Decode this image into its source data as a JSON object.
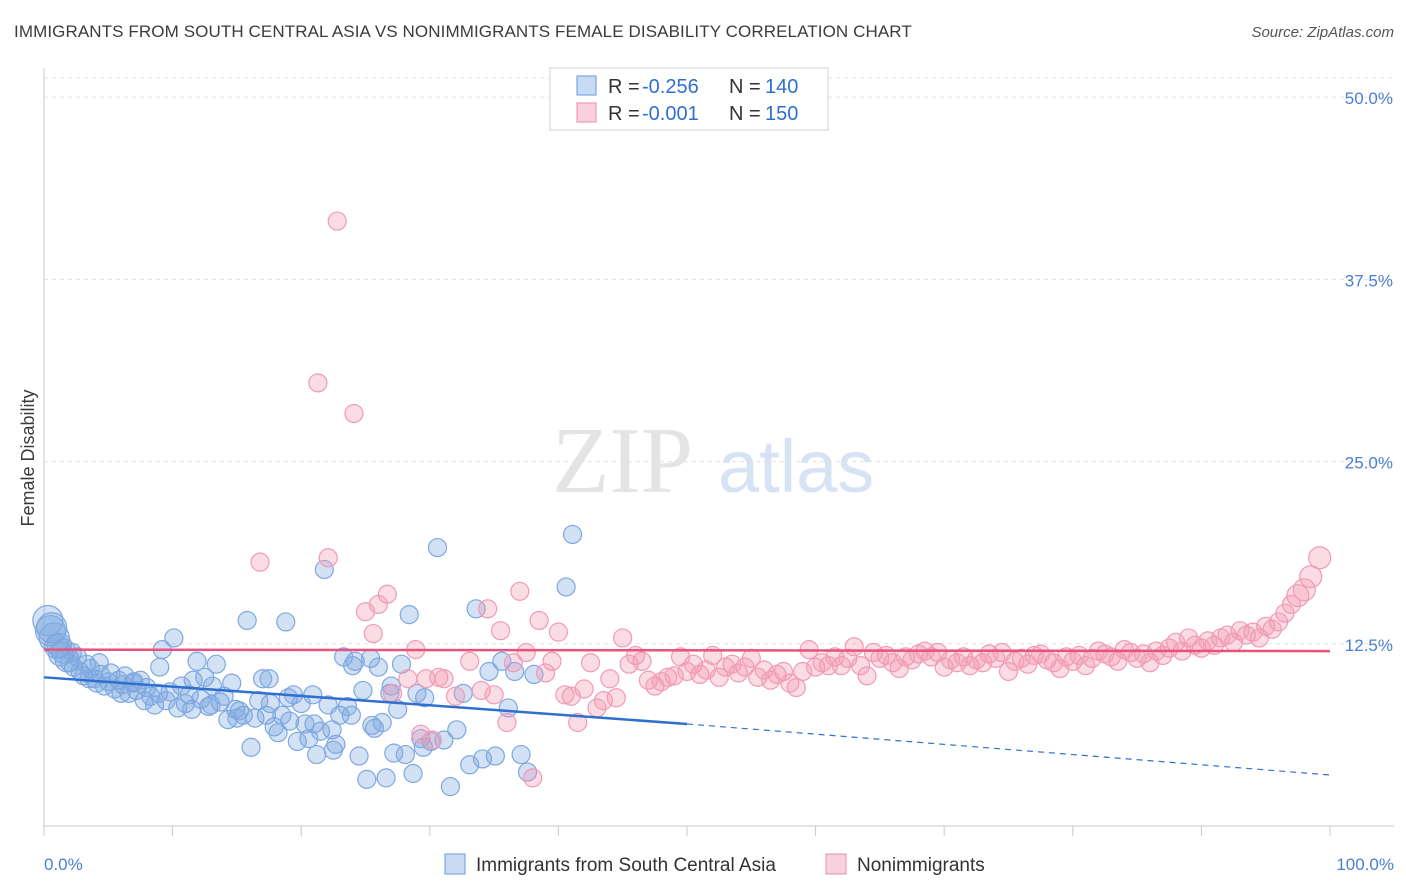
{
  "header": {
    "title": "IMMIGRANTS FROM SOUTH CENTRAL ASIA VS NONIMMIGRANTS FEMALE DISABILITY CORRELATION CHART",
    "source": "Source: ZipAtlas.com"
  },
  "watermark": {
    "zip": "ZIP",
    "atlas": "atlas"
  },
  "legend": {
    "rows": [
      {
        "r_label": "R =",
        "r_value": "-0.256",
        "n_label": "N =",
        "n_value": "140"
      },
      {
        "r_label": "R =",
        "r_value": "-0.001",
        "n_label": "N =",
        "n_value": "150"
      }
    ]
  },
  "bottom_legend": {
    "series1": "Immigrants from South Central Asia",
    "series2": "Nonimmigrants"
  },
  "colors": {
    "blue": "#7fa8e0",
    "blue_line": "#2f6fd0",
    "pink": "#f29ab5",
    "pink_line": "#e8527e",
    "tick": "#4a7fd1"
  },
  "chart_data": {
    "type": "scatter",
    "title": "IMMIGRANTS FROM SOUTH CENTRAL ASIA VS NONIMMIGRANTS FEMALE DISABILITY CORRELATION CHART",
    "ylabel": "Female Disability",
    "xlabel": "",
    "xlim": [
      0,
      100
    ],
    "ylim": [
      0,
      52
    ],
    "x_tick_labels": [
      "0.0%",
      "100.0%"
    ],
    "y_ticks": [
      12.5,
      25.0,
      37.5,
      50.0
    ],
    "y_tick_labels": [
      "12.5%",
      "25.0%",
      "37.5%",
      "50.0%"
    ],
    "grid": true,
    "legend_position": "top-center",
    "series": [
      {
        "name": "Immigrants from South Central Asia",
        "color": "#7fa8e0",
        "trend": {
          "x": [
            0,
            50,
            100
          ],
          "y": [
            10.2,
            7.0,
            3.5
          ],
          "solid_until": 50
        },
        "points": [
          [
            0.3,
            14.1
          ],
          [
            0.5,
            13.4
          ],
          [
            0.8,
            12.9
          ],
          [
            1.0,
            12.3
          ],
          [
            1.3,
            11.8
          ],
          [
            1.5,
            12.0
          ],
          [
            1.8,
            11.4
          ],
          [
            2.0,
            11.2
          ],
          [
            2.3,
            10.9
          ],
          [
            2.6,
            11.6
          ],
          [
            2.8,
            10.6
          ],
          [
            3.1,
            10.3
          ],
          [
            3.3,
            11.1
          ],
          [
            3.6,
            10.8
          ],
          [
            3.9,
            10.1
          ],
          [
            4.1,
            9.8
          ],
          [
            4.4,
            10.4
          ],
          [
            4.7,
            9.6
          ],
          [
            5.0,
            9.9
          ],
          [
            5.2,
            10.5
          ],
          [
            5.5,
            9.4
          ],
          [
            5.8,
            10.0
          ],
          [
            6.1,
            9.7
          ],
          [
            6.3,
            10.3
          ],
          [
            6.6,
            9.1
          ],
          [
            6.9,
            9.8
          ],
          [
            7.2,
            9.3
          ],
          [
            7.5,
            10.0
          ],
          [
            7.8,
            8.6
          ],
          [
            8.0,
            9.5
          ],
          [
            8.3,
            8.9
          ],
          [
            8.6,
            8.3
          ],
          [
            8.9,
            9.1
          ],
          [
            9.2,
            12.1
          ],
          [
            9.5,
            8.6
          ],
          [
            9.8,
            9.2
          ],
          [
            10.1,
            12.9
          ],
          [
            10.4,
            8.1
          ],
          [
            10.7,
            9.6
          ],
          [
            11.0,
            8.4
          ],
          [
            11.3,
            9.0
          ],
          [
            11.6,
            10.0
          ],
          [
            11.9,
            11.3
          ],
          [
            12.2,
            8.7
          ],
          [
            12.5,
            10.2
          ],
          [
            12.8,
            8.2
          ],
          [
            13.1,
            9.6
          ],
          [
            13.4,
            11.1
          ],
          [
            13.7,
            8.5
          ],
          [
            14.0,
            8.9
          ],
          [
            14.3,
            7.3
          ],
          [
            14.6,
            9.8
          ],
          [
            14.9,
            8.0
          ],
          [
            15.2,
            7.9
          ],
          [
            15.5,
            7.6
          ],
          [
            15.8,
            14.1
          ],
          [
            16.1,
            5.4
          ],
          [
            16.4,
            7.4
          ],
          [
            16.7,
            8.6
          ],
          [
            17.0,
            10.1
          ],
          [
            17.3,
            7.6
          ],
          [
            17.6,
            8.4
          ],
          [
            17.9,
            6.8
          ],
          [
            18.2,
            6.4
          ],
          [
            18.5,
            7.6
          ],
          [
            18.8,
            14.0
          ],
          [
            19.1,
            7.2
          ],
          [
            19.4,
            9.0
          ],
          [
            19.7,
            5.8
          ],
          [
            20.0,
            8.4
          ],
          [
            20.3,
            7.0
          ],
          [
            20.6,
            6.0
          ],
          [
            20.9,
            9.0
          ],
          [
            21.2,
            4.9
          ],
          [
            21.5,
            6.5
          ],
          [
            21.8,
            17.6
          ],
          [
            22.1,
            8.3
          ],
          [
            22.4,
            6.6
          ],
          [
            22.7,
            5.6
          ],
          [
            23.0,
            7.6
          ],
          [
            23.3,
            11.6
          ],
          [
            23.6,
            8.2
          ],
          [
            23.9,
            7.6
          ],
          [
            24.2,
            11.3
          ],
          [
            24.5,
            4.8
          ],
          [
            24.8,
            9.3
          ],
          [
            25.1,
            3.2
          ],
          [
            25.4,
            11.5
          ],
          [
            25.7,
            6.7
          ],
          [
            26.0,
            10.9
          ],
          [
            26.3,
            7.1
          ],
          [
            26.6,
            3.3
          ],
          [
            26.9,
            9.1
          ],
          [
            27.2,
            5.0
          ],
          [
            27.5,
            8.0
          ],
          [
            27.8,
            11.1
          ],
          [
            28.1,
            4.9
          ],
          [
            28.4,
            14.5
          ],
          [
            28.7,
            3.6
          ],
          [
            29.0,
            9.1
          ],
          [
            29.3,
            6.0
          ],
          [
            29.6,
            8.8
          ],
          [
            30.1,
            5.8
          ],
          [
            30.6,
            19.1
          ],
          [
            31.1,
            5.9
          ],
          [
            31.6,
            2.7
          ],
          [
            32.1,
            6.6
          ],
          [
            32.6,
            9.1
          ],
          [
            33.1,
            4.2
          ],
          [
            33.6,
            14.9
          ],
          [
            34.1,
            4.6
          ],
          [
            34.6,
            10.6
          ],
          [
            35.1,
            4.8
          ],
          [
            35.6,
            11.3
          ],
          [
            36.1,
            8.1
          ],
          [
            36.6,
            10.6
          ],
          [
            37.1,
            4.9
          ],
          [
            37.6,
            3.7
          ],
          [
            38.1,
            10.4
          ],
          [
            41.1,
            20.0
          ],
          [
            40.6,
            16.4
          ],
          [
            0.6,
            13.6
          ],
          [
            1.2,
            12.4
          ],
          [
            2.2,
            11.9
          ],
          [
            3.5,
            10.1
          ],
          [
            4.3,
            11.2
          ],
          [
            6.0,
            9.1
          ],
          [
            7.0,
            9.9
          ],
          [
            9.0,
            10.9
          ],
          [
            11.5,
            8.0
          ],
          [
            13.0,
            8.3
          ],
          [
            15.0,
            7.4
          ],
          [
            17.5,
            10.1
          ],
          [
            19.0,
            8.8
          ],
          [
            21.0,
            7.0
          ],
          [
            22.5,
            5.2
          ],
          [
            24.0,
            11.0
          ],
          [
            25.5,
            6.9
          ],
          [
            27.0,
            9.6
          ],
          [
            29.5,
            5.4
          ]
        ]
      },
      {
        "name": "Nonimmigrants",
        "color": "#f29ab5",
        "trend": {
          "x": [
            0,
            100
          ],
          "y": [
            12.1,
            12.0
          ]
        },
        "points": [
          [
            16.8,
            18.1
          ],
          [
            21.3,
            30.4
          ],
          [
            22.1,
            18.4
          ],
          [
            22.8,
            41.5
          ],
          [
            24.1,
            28.3
          ],
          [
            25.0,
            14.7
          ],
          [
            25.6,
            13.2
          ],
          [
            26.0,
            15.2
          ],
          [
            26.7,
            15.9
          ],
          [
            27.1,
            9.1
          ],
          [
            28.3,
            10.1
          ],
          [
            28.9,
            12.1
          ],
          [
            29.3,
            6.3
          ],
          [
            29.7,
            10.1
          ],
          [
            30.2,
            5.9
          ],
          [
            30.7,
            10.2
          ],
          [
            31.1,
            10.1
          ],
          [
            32.0,
            8.9
          ],
          [
            33.1,
            11.3
          ],
          [
            34.0,
            9.3
          ],
          [
            34.5,
            14.9
          ],
          [
            35.0,
            9.0
          ],
          [
            35.5,
            13.4
          ],
          [
            36.0,
            7.1
          ],
          [
            36.5,
            11.2
          ],
          [
            37.0,
            16.1
          ],
          [
            37.5,
            11.9
          ],
          [
            38.0,
            3.3
          ],
          [
            38.5,
            14.1
          ],
          [
            39.0,
            10.5
          ],
          [
            39.5,
            11.3
          ],
          [
            40.0,
            13.3
          ],
          [
            40.5,
            9.0
          ],
          [
            41.0,
            8.9
          ],
          [
            41.5,
            7.1
          ],
          [
            42.0,
            9.4
          ],
          [
            42.5,
            11.2
          ],
          [
            43.0,
            8.1
          ],
          [
            43.5,
            8.6
          ],
          [
            44.0,
            10.1
          ],
          [
            44.5,
            8.8
          ],
          [
            45.0,
            12.9
          ],
          [
            45.5,
            11.1
          ],
          [
            46.0,
            11.7
          ],
          [
            46.5,
            11.3
          ],
          [
            47.0,
            10.0
          ],
          [
            47.5,
            9.6
          ],
          [
            48.0,
            9.9
          ],
          [
            48.5,
            10.2
          ],
          [
            49.0,
            10.3
          ],
          [
            49.5,
            11.6
          ],
          [
            50.0,
            10.6
          ],
          [
            50.5,
            11.1
          ],
          [
            51.0,
            10.4
          ],
          [
            51.5,
            10.7
          ],
          [
            52.0,
            11.7
          ],
          [
            52.5,
            10.2
          ],
          [
            53.0,
            10.9
          ],
          [
            53.5,
            11.1
          ],
          [
            54.0,
            10.5
          ],
          [
            54.5,
            10.9
          ],
          [
            55.0,
            11.5
          ],
          [
            55.5,
            10.2
          ],
          [
            56.0,
            10.7
          ],
          [
            56.5,
            10.0
          ],
          [
            57.0,
            10.4
          ],
          [
            57.5,
            10.6
          ],
          [
            58.0,
            9.8
          ],
          [
            58.5,
            9.5
          ],
          [
            59.0,
            10.6
          ],
          [
            59.5,
            12.1
          ],
          [
            60.0,
            10.9
          ],
          [
            60.5,
            11.2
          ],
          [
            61.0,
            11.0
          ],
          [
            61.5,
            11.6
          ],
          [
            62.0,
            11.0
          ],
          [
            62.5,
            11.5
          ],
          [
            63.0,
            12.3
          ],
          [
            63.5,
            11.0
          ],
          [
            64.0,
            10.3
          ],
          [
            64.5,
            11.9
          ],
          [
            65.0,
            11.5
          ],
          [
            65.5,
            11.7
          ],
          [
            66.0,
            11.2
          ],
          [
            66.5,
            10.8
          ],
          [
            67.0,
            11.6
          ],
          [
            67.5,
            11.4
          ],
          [
            68.0,
            11.8
          ],
          [
            68.5,
            12.0
          ],
          [
            69.0,
            11.6
          ],
          [
            69.5,
            11.9
          ],
          [
            70.0,
            10.9
          ],
          [
            70.5,
            11.4
          ],
          [
            71.0,
            11.2
          ],
          [
            71.5,
            11.6
          ],
          [
            72.0,
            11.0
          ],
          [
            72.5,
            11.4
          ],
          [
            73.0,
            11.2
          ],
          [
            73.5,
            11.8
          ],
          [
            74.0,
            11.5
          ],
          [
            74.5,
            11.9
          ],
          [
            75.0,
            10.6
          ],
          [
            75.5,
            11.3
          ],
          [
            76.0,
            11.5
          ],
          [
            76.5,
            11.1
          ],
          [
            77.0,
            11.7
          ],
          [
            77.5,
            11.8
          ],
          [
            78.0,
            11.4
          ],
          [
            78.5,
            11.2
          ],
          [
            79.0,
            10.8
          ],
          [
            79.5,
            11.6
          ],
          [
            80.0,
            11.3
          ],
          [
            80.5,
            11.7
          ],
          [
            81.0,
            11.0
          ],
          [
            81.5,
            11.5
          ],
          [
            82.0,
            12.0
          ],
          [
            82.5,
            11.8
          ],
          [
            83.0,
            11.6
          ],
          [
            83.5,
            11.3
          ],
          [
            84.0,
            12.1
          ],
          [
            84.5,
            11.9
          ],
          [
            85.0,
            11.5
          ],
          [
            85.5,
            11.8
          ],
          [
            86.0,
            11.2
          ],
          [
            86.5,
            12.0
          ],
          [
            87.0,
            11.7
          ],
          [
            87.5,
            12.2
          ],
          [
            88.0,
            12.6
          ],
          [
            88.5,
            12.0
          ],
          [
            89.0,
            12.9
          ],
          [
            89.5,
            12.4
          ],
          [
            90.0,
            12.2
          ],
          [
            90.5,
            12.7
          ],
          [
            91.0,
            12.4
          ],
          [
            91.5,
            12.9
          ],
          [
            92.0,
            13.1
          ],
          [
            92.5,
            12.6
          ],
          [
            93.0,
            13.4
          ],
          [
            93.5,
            13.1
          ],
          [
            94.0,
            13.3
          ],
          [
            94.5,
            12.9
          ],
          [
            95.0,
            13.7
          ],
          [
            95.5,
            13.5
          ],
          [
            96.0,
            14.0
          ],
          [
            96.5,
            14.6
          ],
          [
            97.0,
            15.2
          ],
          [
            97.5,
            15.8
          ],
          [
            98.0,
            16.2
          ],
          [
            98.5,
            17.1
          ],
          [
            99.2,
            18.4
          ]
        ]
      }
    ]
  }
}
